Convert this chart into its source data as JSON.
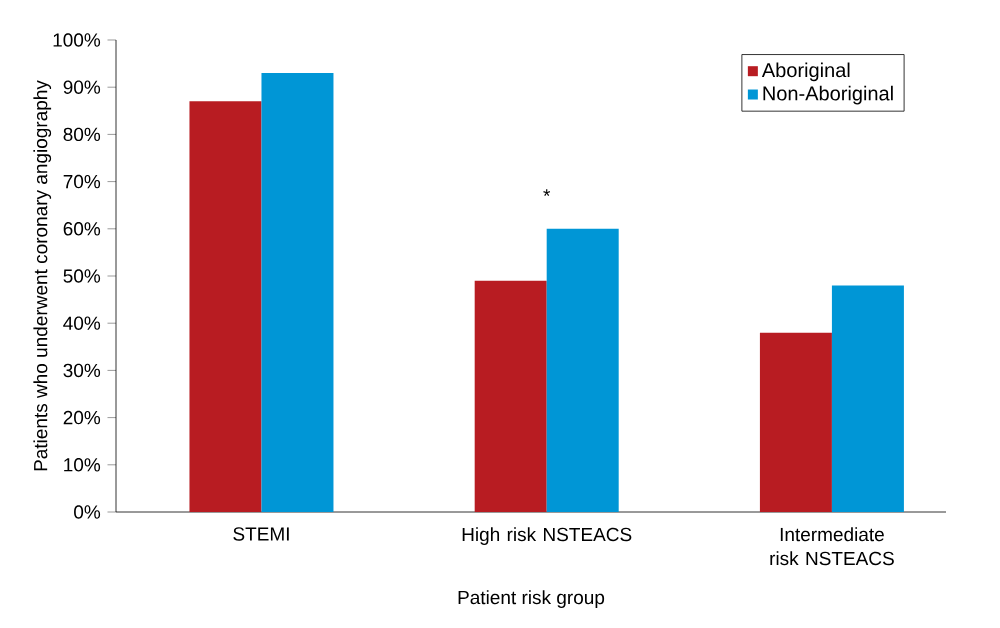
{
  "chart_data": {
    "type": "bar",
    "xlabel": "Patient risk group",
    "ylabel": "Patients who underwent coronary angiography",
    "categories": [
      "STEMI",
      "High risk NSTEACS",
      "Intermediate risk NSTEACS"
    ],
    "series": [
      {
        "name": "Aboriginal",
        "color": "#b81c22",
        "values": [
          87,
          49,
          38
        ]
      },
      {
        "name": "Non-Aboriginal",
        "color": "#0096d6",
        "values": [
          93,
          60,
          48
        ]
      }
    ],
    "ylim": [
      0,
      100
    ],
    "yticks": [
      {
        "value": 0,
        "label": "0%"
      },
      {
        "value": 10,
        "label": "10%"
      },
      {
        "value": 20,
        "label": "20%"
      },
      {
        "value": 30,
        "label": "30%"
      },
      {
        "value": 40,
        "label": "40%"
      },
      {
        "value": 50,
        "label": "50%"
      },
      {
        "value": 60,
        "label": "60%"
      },
      {
        "value": 70,
        "label": "70%"
      },
      {
        "value": 80,
        "label": "80%"
      },
      {
        "value": 90,
        "label": "90%"
      },
      {
        "value": 100,
        "label": "100%"
      }
    ],
    "annotations": [
      "*"
    ],
    "legend": "top right",
    "grid": false
  }
}
